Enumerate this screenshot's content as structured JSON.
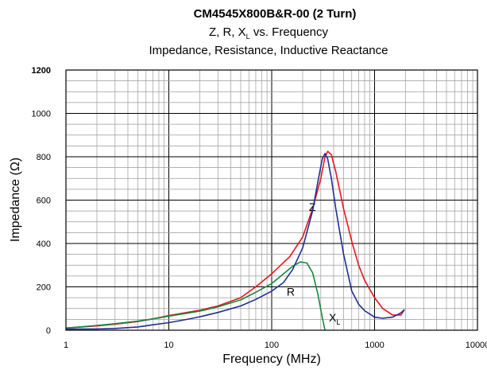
{
  "chart_data": {
    "type": "line",
    "title": "CM4545X800B&R-00 (2 Turn)",
    "subtitle_main": "Z, R, X",
    "subtitle_sub": "L",
    "subtitle_rest": " vs. Frequency",
    "subtitle2": "Impedance, Resistance, Inductive Reactance",
    "xlabel": "Frequency (MHz)",
    "ylabel": "Impedance (Ω)",
    "x_scale": "log",
    "xlim": [
      1,
      10000
    ],
    "ylim": [
      0,
      1200
    ],
    "grid": true,
    "xticks": [
      {
        "value": 1,
        "label": "1"
      },
      {
        "value": 10,
        "label": "10"
      },
      {
        "value": 100,
        "label": "100"
      },
      {
        "value": 1000,
        "label": "1000"
      },
      {
        "value": 10000,
        "label": "10000"
      }
    ],
    "yticks": [
      {
        "value": 0,
        "label": "0"
      },
      {
        "value": 200,
        "label": "200"
      },
      {
        "value": 400,
        "label": "400"
      },
      {
        "value": 600,
        "label": "600"
      },
      {
        "value": 800,
        "label": "800"
      },
      {
        "value": 1000,
        "label": "1000"
      },
      {
        "value": 1200,
        "label": "1200"
      }
    ],
    "series": [
      {
        "name": "Z",
        "label": "Z",
        "color": "#e8141c",
        "label_x": 230,
        "label_y": 550,
        "x": [
          1,
          2,
          3,
          5,
          7,
          10,
          15,
          20,
          30,
          50,
          70,
          100,
          150,
          200,
          250,
          300,
          330,
          350,
          380,
          420,
          500,
          600,
          700,
          800,
          1000,
          1200,
          1500,
          1800,
          1950
        ],
        "y": [
          10,
          20,
          28,
          40,
          52,
          68,
          82,
          92,
          112,
          150,
          200,
          260,
          340,
          430,
          560,
          700,
          800,
          825,
          810,
          730,
          560,
          410,
          300,
          230,
          150,
          100,
          70,
          70,
          95
        ]
      },
      {
        "name": "R",
        "label": "R",
        "color": "#138a3c",
        "label_x": 140,
        "label_y": 160,
        "x": [
          1,
          2,
          3,
          5,
          7,
          10,
          15,
          20,
          30,
          50,
          70,
          100,
          130,
          160,
          190,
          220,
          250,
          280,
          310,
          330
        ],
        "y": [
          10,
          22,
          30,
          42,
          52,
          65,
          78,
          88,
          108,
          140,
          175,
          215,
          260,
          295,
          315,
          310,
          265,
          170,
          60,
          0
        ]
      },
      {
        "name": "X_L",
        "label": "X",
        "label_sub": "L",
        "color": "#1f2f8f",
        "label_x": 360,
        "label_y": 40,
        "x": [
          1,
          2,
          3,
          5,
          7,
          10,
          15,
          20,
          30,
          50,
          70,
          100,
          130,
          160,
          200,
          250,
          280,
          310,
          330,
          350,
          380,
          420,
          500,
          600,
          700,
          800,
          1000,
          1200,
          1500,
          1800,
          1950
        ],
        "y": [
          5,
          6,
          8,
          15,
          25,
          35,
          50,
          62,
          82,
          112,
          142,
          180,
          220,
          280,
          380,
          550,
          680,
          790,
          815,
          790,
          700,
          560,
          350,
          180,
          120,
          90,
          60,
          55,
          60,
          80,
          95
        ]
      }
    ]
  }
}
